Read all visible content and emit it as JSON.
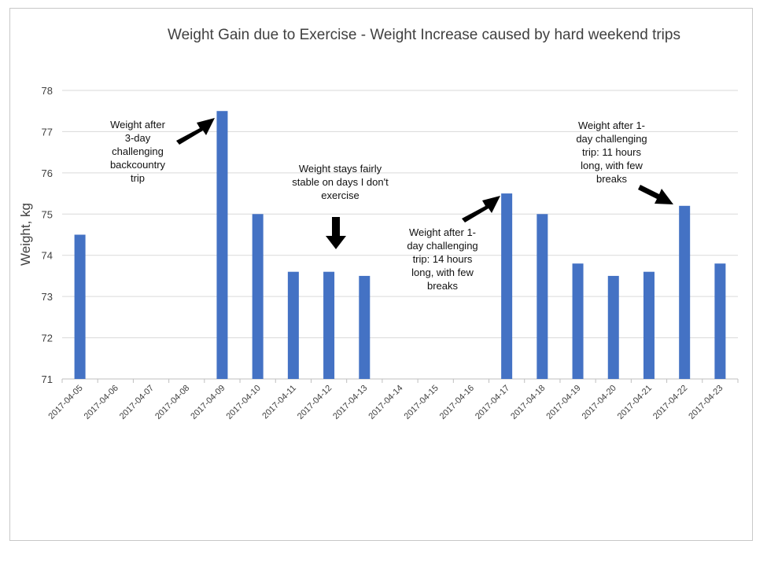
{
  "chart_data": {
    "type": "bar",
    "title": "Weight Gain due to Exercise - Weight Increase caused by hard weekend trips",
    "xlabel": "",
    "ylabel": "Weight, kg",
    "ylim": [
      71,
      78
    ],
    "yticks": [
      "71",
      "72",
      "73",
      "74",
      "75",
      "76",
      "77",
      "78"
    ],
    "grid": true,
    "categories": [
      "2017-04-05",
      "2017-04-06",
      "2017-04-07",
      "2017-04-08",
      "2017-04-09",
      "2017-04-10",
      "2017-04-11",
      "2017-04-12",
      "2017-04-13",
      "2017-04-14",
      "2017-04-15",
      "2017-04-16",
      "2017-04-17",
      "2017-04-18",
      "2017-04-19",
      "2017-04-20",
      "2017-04-21",
      "2017-04-22",
      "2017-04-23"
    ],
    "values": [
      74.5,
      null,
      null,
      null,
      77.5,
      75.0,
      73.6,
      73.6,
      73.5,
      null,
      null,
      null,
      75.5,
      75.0,
      73.8,
      73.5,
      73.6,
      75.2,
      73.8
    ],
    "bar_color": "#4472c4",
    "annotations": [
      {
        "lines": [
          "Weight after",
          "3-day",
          "challenging",
          "backcountry",
          "trip"
        ]
      },
      {
        "lines": [
          "Weight stays fairly",
          "stable on days I don't",
          "exercise"
        ]
      },
      {
        "lines": [
          "Weight after 1-",
          "day challenging",
          "trip: 14 hours",
          "long, with few",
          "breaks"
        ]
      },
      {
        "lines": [
          "Weight after 1-",
          "day challenging",
          "trip: 11 hours",
          "long, with few",
          "breaks"
        ]
      }
    ]
  }
}
